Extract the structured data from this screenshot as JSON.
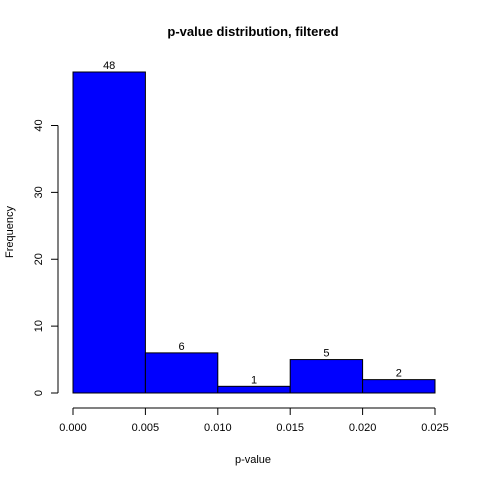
{
  "chart_data": {
    "type": "bar",
    "title": "p-value distribution, filtered",
    "xlabel": "p-value",
    "ylabel": "Frequency",
    "bins": [
      {
        "from": 0.0,
        "to": 0.005,
        "value": 48
      },
      {
        "from": 0.005,
        "to": 0.01,
        "value": 6
      },
      {
        "from": 0.01,
        "to": 0.015,
        "value": 1
      },
      {
        "from": 0.015,
        "to": 0.02,
        "value": 5
      },
      {
        "from": 0.02,
        "to": 0.025,
        "value": 2
      }
    ],
    "xlim": [
      0,
      0.025
    ],
    "ylim": [
      0,
      48
    ],
    "x_ticks": [
      {
        "value": 0.0,
        "label": "0.000"
      },
      {
        "value": 0.005,
        "label": "0.005"
      },
      {
        "value": 0.01,
        "label": "0.010"
      },
      {
        "value": 0.015,
        "label": "0.015"
      },
      {
        "value": 0.02,
        "label": "0.020"
      },
      {
        "value": 0.025,
        "label": "0.025"
      }
    ],
    "y_ticks": [
      {
        "value": 0,
        "label": "0"
      },
      {
        "value": 10,
        "label": "10"
      },
      {
        "value": 20,
        "label": "20"
      },
      {
        "value": 30,
        "label": "30"
      },
      {
        "value": 40,
        "label": "40"
      }
    ],
    "bar_color": "#0000ff",
    "grid": false,
    "legend": "none"
  }
}
